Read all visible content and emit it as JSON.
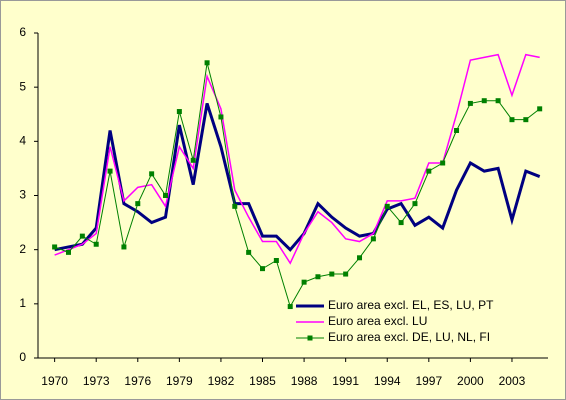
{
  "chart_data": {
    "type": "line",
    "x": [
      1970,
      1971,
      1972,
      1973,
      1974,
      1975,
      1976,
      1977,
      1978,
      1979,
      1980,
      1981,
      1982,
      1983,
      1984,
      1985,
      1986,
      1987,
      1988,
      1989,
      1990,
      1991,
      1992,
      1993,
      1994,
      1995,
      1996,
      1997,
      1998,
      1999,
      2000,
      2001,
      2002,
      2003,
      2004,
      2005
    ],
    "series": [
      {
        "name": "Euro area excl. EL, ES, LU, PT",
        "color": "#000080",
        "values": [
          2.0,
          2.05,
          2.1,
          2.4,
          4.2,
          2.85,
          2.7,
          2.5,
          2.6,
          4.3,
          3.2,
          4.7,
          3.9,
          2.85,
          2.85,
          2.25,
          2.25,
          2.0,
          2.3,
          2.85,
          2.6,
          2.4,
          2.25,
          2.3,
          2.75,
          2.85,
          2.45,
          2.6,
          2.4,
          3.1,
          3.6,
          3.45,
          3.5,
          2.55,
          3.45,
          3.35
        ]
      },
      {
        "name": "Euro area excl. LU",
        "color": "#ff00ff",
        "values": [
          1.9,
          2.0,
          2.1,
          2.3,
          3.9,
          2.9,
          3.15,
          3.2,
          2.8,
          3.9,
          3.5,
          5.2,
          4.6,
          3.1,
          2.6,
          2.15,
          2.15,
          1.75,
          2.3,
          2.7,
          2.5,
          2.2,
          2.15,
          2.3,
          2.9,
          2.9,
          2.95,
          3.6,
          3.6,
          4.5,
          5.5,
          5.55,
          5.6,
          4.85,
          5.6,
          5.55
        ]
      },
      {
        "name": "Euro area excl. DE, LU, NL, FI",
        "color": "#008000",
        "values": [
          2.05,
          1.95,
          2.25,
          2.1,
          3.45,
          2.05,
          2.85,
          3.4,
          3.0,
          4.55,
          3.65,
          5.45,
          4.45,
          2.8,
          1.95,
          1.65,
          1.8,
          0.95,
          1.4,
          1.5,
          1.55,
          1.55,
          1.85,
          2.2,
          2.8,
          2.5,
          2.85,
          3.45,
          3.6,
          4.2,
          4.7,
          4.75,
          4.75,
          4.4,
          4.4,
          4.6
        ]
      }
    ],
    "xlim": [
      1968.8,
      2005.6
    ],
    "xticks": [
      1970,
      1973,
      1976,
      1979,
      1982,
      1985,
      1988,
      1991,
      1994,
      1997,
      2000,
      2003
    ],
    "ylim": [
      0,
      6
    ],
    "yticks": [
      0,
      1,
      2,
      3,
      4,
      5,
      6
    ],
    "legend": "lower right",
    "grid": false
  }
}
